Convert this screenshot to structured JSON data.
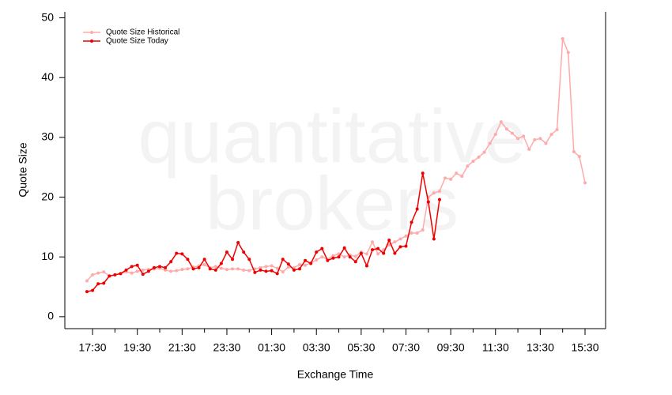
{
  "chart_data": {
    "type": "line",
    "watermark": [
      "quantitative",
      "brokers"
    ],
    "x_label": "Exchange Time",
    "y_label": "Quote Size",
    "categories": [
      null,
      "17:30",
      null,
      null,
      null,
      null,
      null,
      null,
      null,
      "19:30",
      null,
      null,
      null,
      null,
      null,
      null,
      null,
      "21:30",
      null,
      null,
      null,
      null,
      null,
      null,
      null,
      "23:30",
      null,
      null,
      null,
      null,
      null,
      null,
      null,
      "01:30",
      null,
      null,
      null,
      null,
      null,
      null,
      null,
      "03:30",
      null,
      null,
      null,
      null,
      null,
      null,
      null,
      "05:30",
      null,
      null,
      null,
      null,
      null,
      null,
      null,
      "07:30",
      null,
      null,
      null,
      null,
      null,
      null,
      null,
      "09:30",
      null,
      null,
      null,
      null,
      null,
      null,
      null,
      "11:30",
      null,
      null,
      null,
      null,
      null,
      null,
      null,
      "13:30",
      null,
      null,
      null,
      null,
      null,
      null,
      null,
      "15:30"
    ],
    "series": [
      {
        "name": "Quote Size Historical",
        "color": "#ffaaaa",
        "values": [
          6,
          7,
          7.3,
          7.5,
          6.8,
          7,
          7.2,
          7.5,
          7.3,
          7.6,
          7.8,
          7.9,
          8,
          8.1,
          7.8,
          7.6,
          7.7,
          7.9,
          8,
          8.3,
          8.5,
          8.7,
          8.2,
          8.4,
          8.1,
          7.9,
          8,
          8,
          7.8,
          7.7,
          8,
          8.2,
          8.4,
          8.5,
          8.1,
          7.5,
          8.3,
          8.2,
          8.7,
          8.6,
          9,
          9.5,
          10,
          9.6,
          10.2,
          10.5,
          10,
          10.3,
          10.1,
          10.8,
          10.5,
          12.5,
          10.5,
          11.2,
          12,
          12.5,
          13,
          13.5,
          14,
          14,
          14.5,
          20,
          20.7,
          21,
          23.2,
          23,
          24,
          23.5,
          25.2,
          26,
          26.7,
          27.5,
          29,
          30.5,
          32.6,
          31.4,
          30.7,
          29.8,
          30.2,
          28,
          29.6,
          29.8,
          29,
          30.5,
          31.3,
          46.5,
          44.2,
          27.6,
          26.8,
          22.4
        ]
      },
      {
        "name": "Quote Size Today",
        "color": "#ee0000",
        "values": [
          4.2,
          4.4,
          5.5,
          5.6,
          6.8,
          7,
          7.2,
          7.8,
          8.4,
          8.6,
          7.1,
          7.6,
          8.2,
          8.4,
          8.2,
          9.2,
          10.6,
          10.5,
          9.6,
          8,
          8.2,
          9.6,
          8,
          7.8,
          8.9,
          10.8,
          9.6,
          12.4,
          10.8,
          9.6,
          7.4,
          7.8,
          7.6,
          7.7,
          7.2,
          9.6,
          8.8,
          7.8,
          8,
          9.4,
          8.9,
          10.8,
          11.4,
          9.4,
          9.8,
          10,
          11.5,
          10,
          9.2,
          10.6,
          8.5,
          11.2,
          11.4,
          10.6,
          12.8,
          10.6,
          11.7,
          11.8,
          15.8,
          18,
          24,
          19.2,
          13,
          19.6,
          null,
          null,
          null,
          null,
          null,
          null,
          null,
          null,
          null,
          null,
          null,
          null,
          null,
          null,
          null,
          null,
          null,
          null,
          null,
          null,
          null,
          null,
          null,
          null,
          null,
          null
        ]
      }
    ],
    "ylim": [
      -2,
      51
    ],
    "yticks": [
      0,
      10,
      20,
      30,
      40,
      50
    ],
    "legend": "top-left"
  }
}
